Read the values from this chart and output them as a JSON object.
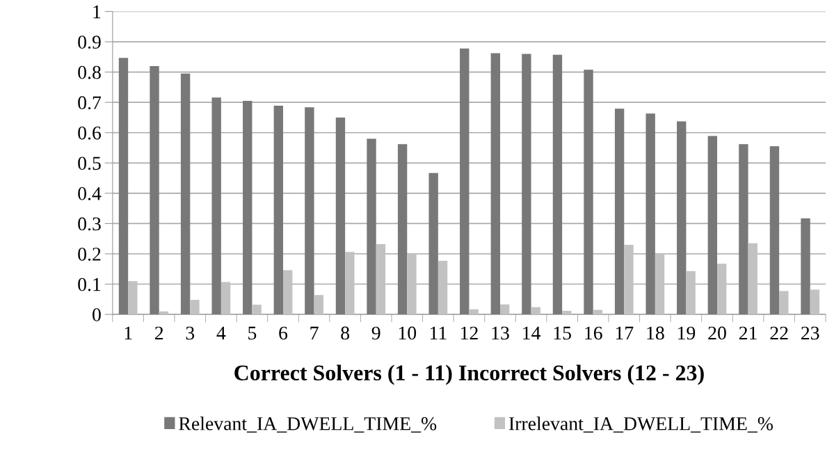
{
  "chart_data": {
    "type": "bar",
    "xlabel": "Correct Solvers (1 - 11) Incorrect Solvers (12 - 23)",
    "categories": [
      "1",
      "2",
      "3",
      "4",
      "5",
      "6",
      "7",
      "8",
      "9",
      "10",
      "11",
      "12",
      "13",
      "14",
      "15",
      "16",
      "17",
      "18",
      "19",
      "20",
      "21",
      "22",
      "23"
    ],
    "series": [
      {
        "name": "Relevant_IA_DWELL_TIME_%",
        "color": "#787878",
        "values": [
          0.847,
          0.82,
          0.795,
          0.716,
          0.705,
          0.689,
          0.684,
          0.65,
          0.58,
          0.562,
          0.467,
          0.878,
          0.862,
          0.86,
          0.857,
          0.808,
          0.679,
          0.663,
          0.637,
          0.589,
          0.562,
          0.555,
          0.317
        ]
      },
      {
        "name": "Irrelevant_IA_DWELL_TIME_%",
        "color": "#c2c2c2",
        "values": [
          0.11,
          0.01,
          0.048,
          0.107,
          0.032,
          0.146,
          0.064,
          0.206,
          0.232,
          0.2,
          0.177,
          0.017,
          0.033,
          0.024,
          0.012,
          0.015,
          0.23,
          0.2,
          0.143,
          0.167,
          0.235,
          0.077,
          0.082
        ]
      }
    ],
    "ylim": [
      0,
      1
    ],
    "yticks": [
      0,
      0.1,
      0.2,
      0.3,
      0.4,
      0.5,
      0.6,
      0.7,
      0.8,
      0.9,
      1
    ],
    "grid": "y",
    "legend": "bottom"
  }
}
